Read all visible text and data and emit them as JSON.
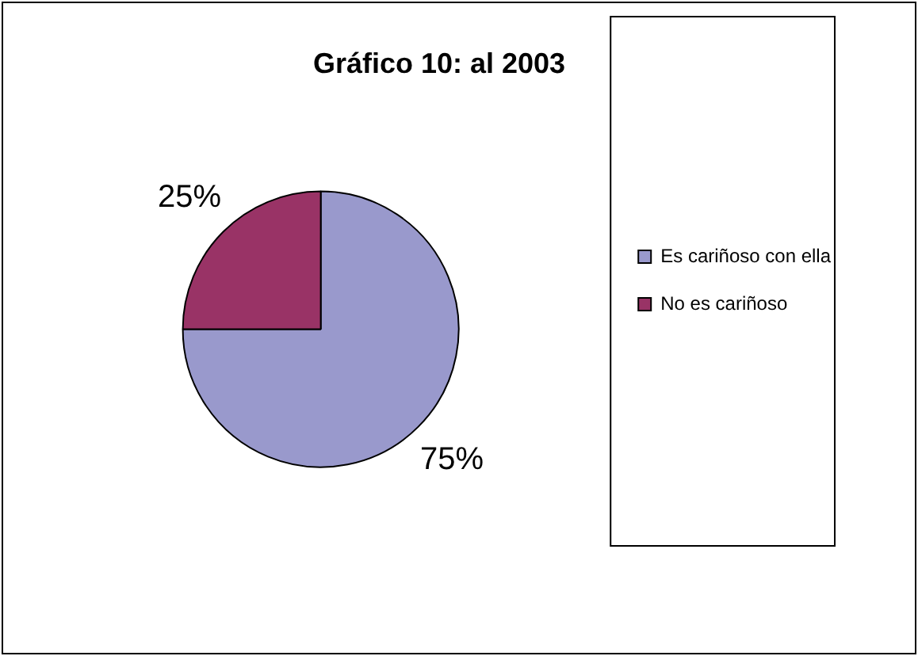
{
  "chart_data": {
    "type": "pie",
    "title": "Gráfico 10: al 2003",
    "categories": [
      "Es cariñoso con ella",
      "No es cariñoso"
    ],
    "values": [
      75,
      25
    ],
    "colors": [
      "#9999cc",
      "#993366"
    ],
    "value_labels": [
      "75%",
      "25%"
    ],
    "legend": "right"
  }
}
